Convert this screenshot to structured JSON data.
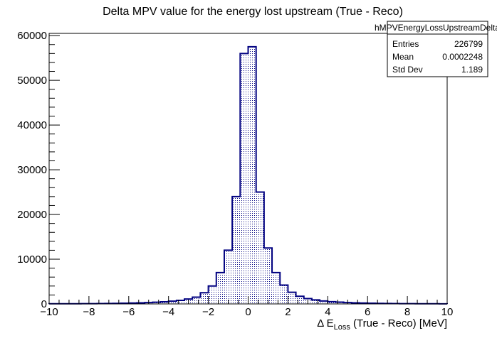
{
  "chart_data": {
    "type": "bar",
    "title": "Delta MPV value for the energy lost upstream (True - Reco)",
    "xlabel_prefix": "Δ E",
    "xlabel_subscript": "Loss",
    "xlabel_suffix": " (True - Reco) [MeV]",
    "ylabel": "",
    "xlim": [
      -10,
      10
    ],
    "ylim": [
      0,
      60500
    ],
    "bin_width": 0.4,
    "x": [
      -9.8,
      -9.4,
      -9.0,
      -8.6,
      -8.2,
      -7.8,
      -7.4,
      -7.0,
      -6.6,
      -6.2,
      -5.8,
      -5.4,
      -5.0,
      -4.6,
      -4.2,
      -3.8,
      -3.4,
      -3.0,
      -2.6,
      -2.2,
      -1.8,
      -1.4,
      -1.0,
      -0.6,
      -0.2,
      0.2,
      0.6,
      1.0,
      1.4,
      1.8,
      2.2,
      2.6,
      3.0,
      3.4,
      3.8,
      4.2,
      4.6,
      5.0,
      5.4,
      5.8,
      6.2,
      6.6,
      7.0,
      7.4,
      7.8,
      8.2,
      8.6,
      9.0,
      9.4,
      9.8
    ],
    "values": [
      30,
      30,
      40,
      40,
      50,
      60,
      70,
      90,
      120,
      150,
      190,
      240,
      300,
      380,
      480,
      620,
      800,
      1100,
      1500,
      2500,
      4000,
      7000,
      12000,
      24000,
      56000,
      57500,
      25000,
      12500,
      7000,
      4200,
      2600,
      1700,
      1200,
      900,
      650,
      500,
      400,
      300,
      240,
      190,
      150,
      120,
      100,
      80,
      60,
      50,
      40,
      30,
      30,
      20
    ],
    "x_ticks": [
      "−10",
      "−8",
      "−6",
      "−4",
      "−2",
      "0",
      "2",
      "4",
      "6",
      "8",
      "10"
    ],
    "x_tick_values": [
      -10,
      -8,
      -6,
      -4,
      -2,
      0,
      2,
      4,
      6,
      8,
      10
    ],
    "y_ticks": [
      "0",
      "10000",
      "20000",
      "30000",
      "40000",
      "50000",
      "60000"
    ],
    "y_tick_values": [
      0,
      10000,
      20000,
      30000,
      40000,
      50000,
      60000
    ],
    "grid": false,
    "legend": "none",
    "colors": {
      "line": "#000080",
      "fill_pattern": "#000080"
    }
  },
  "stats_box": {
    "name": "hMPVEnergyLossUpstreamDelta",
    "rows": [
      {
        "label": "Entries",
        "value": "226799"
      },
      {
        "label": "Mean",
        "value": "0.0002248"
      },
      {
        "label": "Std Dev",
        "value": "1.189"
      }
    ]
  }
}
